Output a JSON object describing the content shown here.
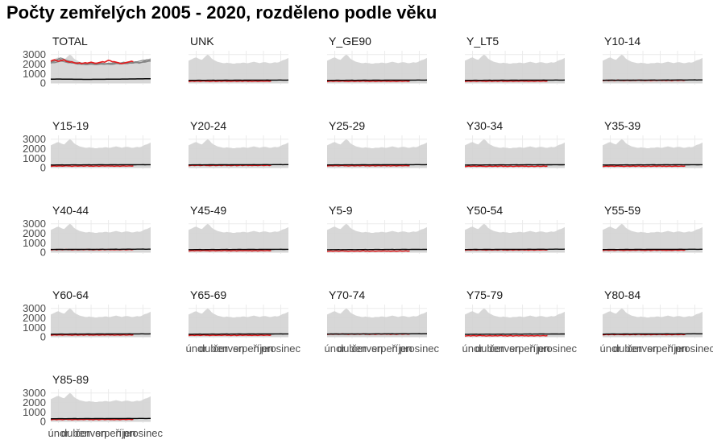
{
  "title": "Počty zemřelých 2005 - 2020, rozděleno podle věku",
  "colors": {
    "band": "#d3d3d3",
    "grid": "#ebebeb",
    "reference_line": "#000000",
    "year_lines": "#7f7f7f",
    "current_year": "#e41a1c"
  },
  "chart_data": {
    "type": "area",
    "facet_labels": [
      "TOTAL",
      "UNK",
      "Y_GE90",
      "Y_LT5",
      "Y10-14",
      "Y15-19",
      "Y20-24",
      "Y25-29",
      "Y30-34",
      "Y35-39",
      "Y40-44",
      "Y45-49",
      "Y5-9",
      "Y50-54",
      "Y55-59",
      "Y60-64",
      "Y65-69",
      "Y70-74",
      "Y75-79",
      "Y80-84",
      "Y85-89"
    ],
    "y_ticks": [
      0,
      1000,
      2000,
      3000
    ],
    "ylim": [
      -150,
      3400
    ],
    "x_tick_labels": [
      "únor",
      "duben",
      "červen",
      "srpen",
      "říjen",
      "prosinec"
    ],
    "x_tick_weeks": [
      5,
      14,
      22,
      31,
      40,
      49
    ],
    "xlim": [
      1,
      53
    ],
    "x_axis_facets": [
      "Y65-69",
      "Y70-74",
      "Y75-79",
      "Y80-84",
      "Y85-89"
    ],
    "band_max": [
      2350,
      2450,
      2550,
      2650,
      2700,
      2600,
      2500,
      2450,
      2650,
      2850,
      3000,
      2850,
      2600,
      2450,
      2350,
      2250,
      2200,
      2150,
      2100,
      2100,
      2150,
      2100,
      2100,
      2050,
      2050,
      2100,
      2100,
      2100,
      2150,
      2150,
      2100,
      2100,
      2150,
      2200,
      2250,
      2200,
      2150,
      2100,
      2150,
      2200,
      2200,
      2150,
      2100,
      2100,
      2150,
      2200,
      2150,
      2200,
      2300,
      2400,
      2450,
      2550,
      2650
    ],
    "reference_line": [
      420,
      425,
      428,
      430,
      432,
      430,
      428,
      425,
      422,
      420,
      418,
      415,
      412,
      410,
      408,
      405,
      404,
      402,
      400,
      400,
      400,
      402,
      404,
      405,
      406,
      408,
      410,
      410,
      412,
      414,
      416,
      418,
      420,
      422,
      424,
      426,
      428,
      430,
      432,
      434,
      436,
      438,
      440,
      442,
      444,
      446,
      448,
      450,
      452,
      455,
      458,
      460,
      462
    ],
    "total_year_lines": [
      [
        2300,
        2350,
        2400,
        2450,
        2500,
        2500,
        2450,
        2400,
        2350,
        2300,
        2250,
        2200,
        2150,
        2100,
        2100,
        2100,
        2050,
        2050,
        2000,
        2000,
        2050,
        2050,
        2000,
        2000,
        1980,
        2000,
        2050,
        2000,
        2000,
        2050,
        2050,
        2000,
        2000,
        2050,
        2100,
        2100,
        2050,
        2100,
        2150,
        2100,
        2100,
        2150,
        2100,
        2150,
        2200,
        2200,
        2150,
        2200,
        2250,
        2300,
        2300,
        2350,
        2350
      ],
      [
        2200,
        2250,
        2300,
        2400,
        2550,
        2650,
        2600,
        2500,
        2400,
        2350,
        2300,
        2250,
        2200,
        2150,
        2150,
        2100,
        2100,
        2100,
        2050,
        2050,
        2050,
        2100,
        2050,
        2050,
        2050,
        2050,
        2100,
        2100,
        2050,
        2050,
        2100,
        2100,
        2100,
        2150,
        2150,
        2150,
        2100,
        2150,
        2200,
        2150,
        2150,
        2150,
        2200,
        2200,
        2250,
        2250,
        2300,
        2350,
        2400,
        2400,
        2450,
        2450,
        2500
      ],
      [
        2100,
        2150,
        2150,
        2200,
        2250,
        2300,
        2300,
        2250,
        2200,
        2150,
        2150,
        2100,
        2100,
        2050,
        2000,
        2000,
        1980,
        1980,
        1950,
        1950,
        1970,
        2000,
        1980,
        1950,
        1950,
        1970,
        2000,
        2000,
        1980,
        2000,
        2000,
        1980,
        1980,
        2000,
        2050,
        2050,
        2000,
        2050,
        2050,
        2050,
        2050,
        2100,
        2100,
        2100,
        2150,
        2150,
        2100,
        2150,
        2200,
        2200,
        2250,
        2300,
        2300
      ]
    ],
    "total_current_year": [
      2300,
      2400,
      2450,
      2350,
      2300,
      2350,
      2400,
      2450,
      2300,
      2250,
      2200,
      2250,
      2150,
      2100,
      2100,
      2150,
      2050,
      2100,
      2150,
      2100,
      2150,
      2200,
      2150,
      2100,
      2100,
      2150,
      2200,
      2250,
      2200,
      2300,
      2400,
      2350,
      2250,
      2250,
      2200,
      2150,
      2100,
      2050,
      2100,
      2150,
      2200,
      2250,
      2300,
      2250
    ]
  }
}
